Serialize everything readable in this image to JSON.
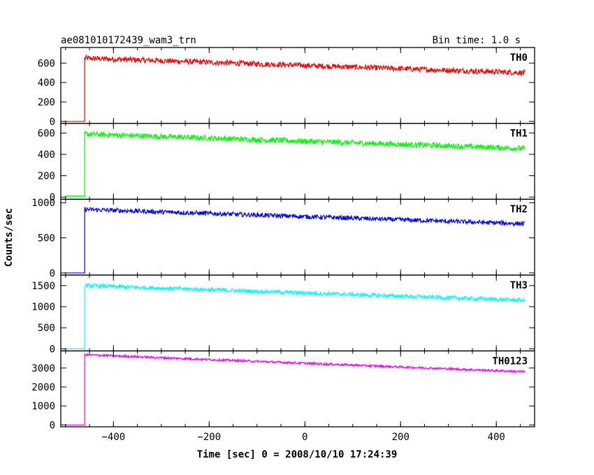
{
  "chart_data": {
    "type": "line",
    "title": "ae081010172439_wam3_trn",
    "bin_time_label": "Bin time: 1.0 s",
    "xlabel": "Time [sec] 0 = 2008/10/10 17:24:39",
    "ylabel": "Counts/sec",
    "xlim": [
      -510,
      480
    ],
    "x_ticks": [
      -400,
      -200,
      0,
      200,
      400
    ],
    "x_tick_labels": [
      "−400",
      "−200",
      "0",
      "200",
      "400"
    ],
    "grid": false,
    "x_start": -500,
    "x_trigger": -460,
    "x_end": 460,
    "panels": [
      {
        "name": "TH0",
        "color": "#ff0000",
        "ylim": [
          -20,
          760
        ],
        "y_ticks": [
          0,
          200,
          400,
          600
        ],
        "y_tick_labels": [
          "0",
          "200",
          "400",
          "600"
        ],
        "baseline": 0,
        "start_level": 650,
        "end_level": 500,
        "noise": 28
      },
      {
        "name": "TH1",
        "color": "#00ff00",
        "ylim": [
          -20,
          690
        ],
        "y_ticks": [
          0,
          200,
          400,
          600
        ],
        "y_tick_labels": [
          "0",
          "200",
          "400",
          "600"
        ],
        "baseline": 10,
        "start_level": 590,
        "end_level": 455,
        "noise": 26
      },
      {
        "name": "TH2",
        "color": "#0000ff",
        "ylim": [
          -30,
          1050
        ],
        "y_ticks": [
          0,
          500,
          1000
        ],
        "y_tick_labels": [
          "0",
          "500",
          "1000"
        ],
        "baseline": 0,
        "start_level": 905,
        "end_level": 700,
        "noise": 32
      },
      {
        "name": "TH3",
        "color": "#00ffff",
        "ylim": [
          -50,
          1750
        ],
        "y_ticks": [
          0,
          500,
          1000,
          1500
        ],
        "y_tick_labels": [
          "0",
          "500",
          "1000",
          "1500"
        ],
        "baseline": 0,
        "start_level": 1500,
        "end_level": 1150,
        "noise": 50
      },
      {
        "name": "TH0123",
        "color": "#ff00ff",
        "ylim": [
          -100,
          3900
        ],
        "y_ticks": [
          0,
          1000,
          2000,
          3000
        ],
        "y_tick_labels": [
          "0",
          "1000",
          "2000",
          "3000"
        ],
        "baseline": 0,
        "start_level": 3700,
        "end_level": 2800,
        "noise": 60
      }
    ]
  }
}
